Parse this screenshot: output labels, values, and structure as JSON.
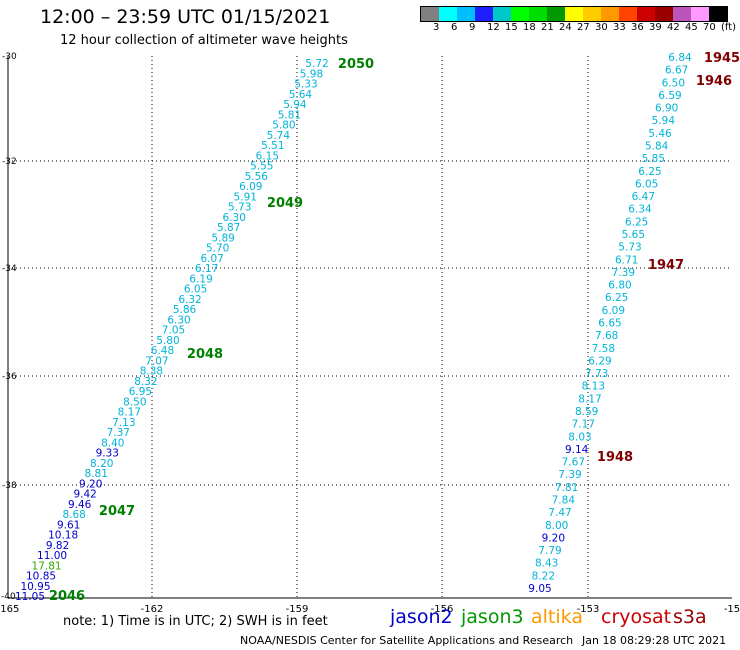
{
  "header": {
    "title": "12:00 – 23:59 UTC 01/15/2021",
    "subtitle": "12 hour collection of altimeter wave heights"
  },
  "scale": {
    "colors": [
      "#808080",
      "#00ffff",
      "#00bfff",
      "#1e1eff",
      "#00c8c8",
      "#00ff00",
      "#00dd00",
      "#009900",
      "#ffff00",
      "#ffcc00",
      "#ff9900",
      "#ff4400",
      "#cc0000",
      "#990000",
      "#bb55bb",
      "#ff99ff",
      "#000000"
    ],
    "labels": [
      "3",
      "6",
      "9",
      "12",
      "15",
      "18",
      "21",
      "24",
      "27",
      "30",
      "33",
      "36",
      "39",
      "42",
      "45",
      "70",
      "(ft)"
    ]
  },
  "map": {
    "lon_ticks": [
      "-165",
      "-162",
      "-159",
      "-156",
      "-153",
      "-15"
    ],
    "lat_ticks": [
      "-30",
      "-32",
      "-34",
      "-36",
      "-38",
      "-40"
    ],
    "colors": {
      "cyan": "#00b4d8",
      "blue": "#0000cc",
      "green": "#33aa00",
      "darkgreen": "#008000",
      "maroon": "#800000"
    },
    "track_left": {
      "values": [
        "5.72",
        "5.98",
        "5.33",
        "5.64",
        "5.94",
        "5.81",
        "5.80",
        "5.74",
        "5.51",
        "6.15",
        "5.55",
        "5.56",
        "6.09",
        "5.91",
        "5.73",
        "6.30",
        "5.87",
        "5.89",
        "5.70",
        "6.07",
        "6.17",
        "6.19",
        "6.05",
        "6.32",
        "5.86",
        "6.30",
        "7.05",
        "5.80",
        "6.48",
        "7.07",
        "8.38",
        "8.32",
        "6.95",
        "8.50",
        "8.17",
        "7.13",
        "7.37",
        "8.40",
        "9.33",
        "8.20",
        "8.81",
        "9.20",
        "9.42",
        "9.46",
        "8.68",
        "9.61",
        "10.18",
        "9.82",
        "11.00",
        "17.81",
        "10.85",
        "10.95",
        "11.05"
      ],
      "colors": [
        "cyan",
        "cyan",
        "cyan",
        "cyan",
        "cyan",
        "cyan",
        "cyan",
        "cyan",
        "cyan",
        "cyan",
        "cyan",
        "cyan",
        "cyan",
        "cyan",
        "cyan",
        "cyan",
        "cyan",
        "cyan",
        "cyan",
        "cyan",
        "cyan",
        "cyan",
        "cyan",
        "cyan",
        "cyan",
        "cyan",
        "cyan",
        "cyan",
        "cyan",
        "cyan",
        "cyan",
        "cyan",
        "cyan",
        "cyan",
        "cyan",
        "cyan",
        "cyan",
        "cyan",
        "blue",
        "cyan",
        "cyan",
        "blue",
        "blue",
        "blue",
        "cyan",
        "blue",
        "blue",
        "blue",
        "blue",
        "green",
        "blue",
        "blue",
        "blue"
      ]
    },
    "track_right": {
      "values": [
        "6.84",
        "6.67",
        "6.50",
        "6.59",
        "6.90",
        "5.94",
        "5.46",
        "5.84",
        "5.85",
        "6.25",
        "6.05",
        "6.47",
        "6.34",
        "6.25",
        "5.65",
        "5.73",
        "6.71",
        "7.39",
        "6.80",
        "6.25",
        "6.09",
        "6.65",
        "7.68",
        "7.58",
        "6.29",
        "7.73",
        "8.13",
        "8.17",
        "8.59",
        "7.17",
        "8.03",
        "9.14",
        "7.67",
        "7.39",
        "7.81",
        "7.84",
        "7.47",
        "8.00",
        "9.20",
        "7.79",
        "8.43",
        "8.22",
        "9.05"
      ],
      "colors": [
        "cyan",
        "cyan",
        "cyan",
        "cyan",
        "cyan",
        "cyan",
        "cyan",
        "cyan",
        "cyan",
        "cyan",
        "cyan",
        "cyan",
        "cyan",
        "cyan",
        "cyan",
        "cyan",
        "cyan",
        "cyan",
        "cyan",
        "cyan",
        "cyan",
        "cyan",
        "cyan",
        "cyan",
        "cyan",
        "cyan",
        "cyan",
        "cyan",
        "cyan",
        "cyan",
        "cyan",
        "blue",
        "cyan",
        "cyan",
        "cyan",
        "cyan",
        "cyan",
        "cyan",
        "blue",
        "cyan",
        "cyan",
        "cyan",
        "blue"
      ]
    },
    "time_labels": [
      {
        "text": "2050",
        "color": "darkgreen"
      },
      {
        "text": "2049",
        "color": "darkgreen"
      },
      {
        "text": "2048",
        "color": "darkgreen"
      },
      {
        "text": "2047",
        "color": "darkgreen"
      },
      {
        "text": "2046",
        "color": "darkgreen"
      },
      {
        "text": "1945",
        "color": "maroon"
      },
      {
        "text": "1946",
        "color": "maroon"
      },
      {
        "text": "1947",
        "color": "maroon"
      },
      {
        "text": "1948",
        "color": "maroon"
      }
    ]
  },
  "footer": {
    "note": "note:  1) Time is in UTC; 2) SWH is in feet",
    "satellites": [
      {
        "name": "jason2",
        "color": "#0000cc"
      },
      {
        "name": "jason3",
        "color": "#009900"
      },
      {
        "name": "altika",
        "color": "#ff9900"
      },
      {
        "name": "cryosat",
        "color": "#cc0000"
      },
      {
        "name": "s3a",
        "color": "#990000"
      }
    ],
    "credit": "NOAA/NESDIS Center for Satellite Applications and Research",
    "timestamp": "Jan 18 08:29:28 UTC 2021"
  }
}
